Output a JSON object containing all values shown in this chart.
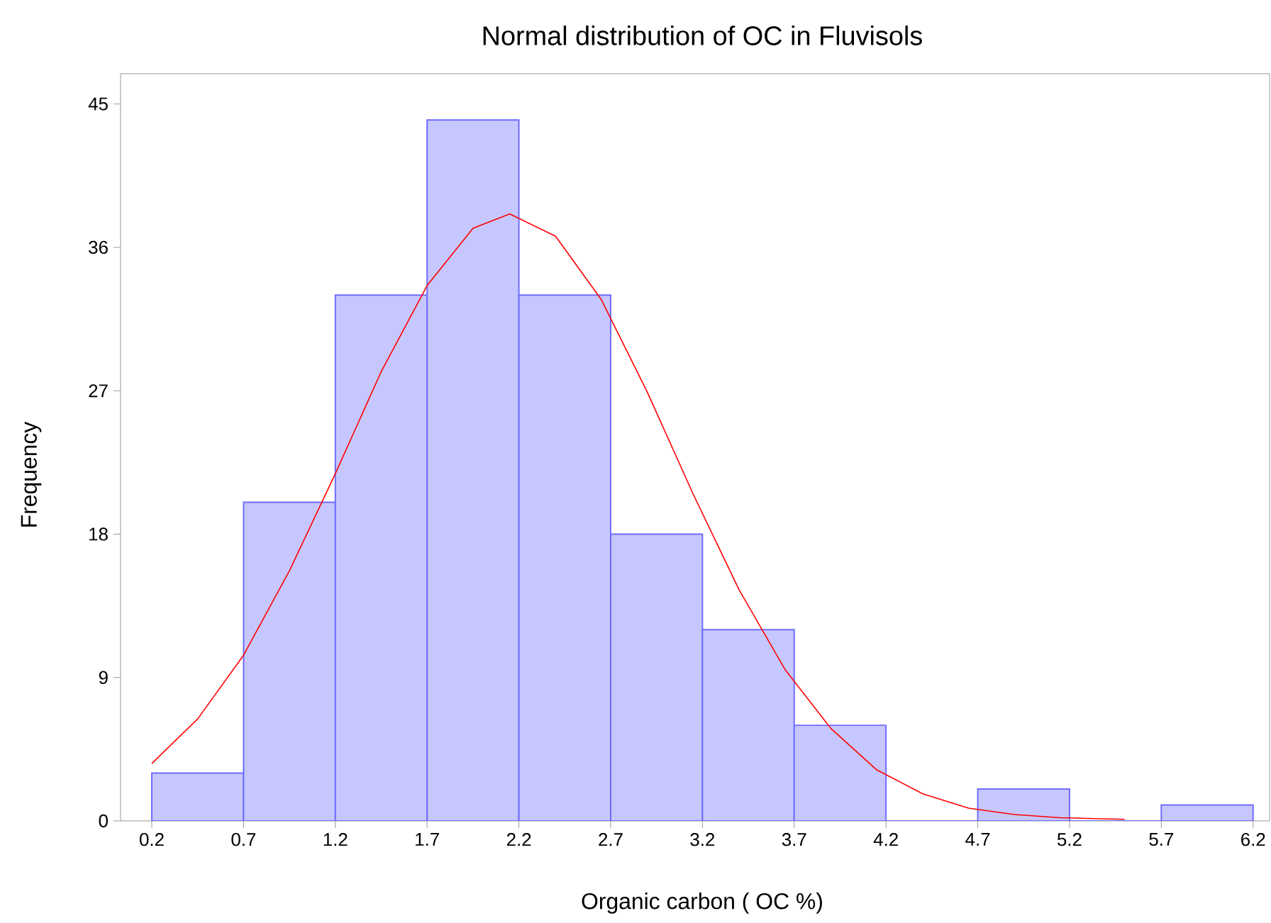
{
  "chart_data": {
    "type": "histogram",
    "title": "Normal distribution of OC in Fluvisols",
    "xlabel": "Organic carbon ( OC %)",
    "ylabel": "Frequency",
    "bins": [
      0.2,
      0.7,
      1.2,
      1.7,
      2.2,
      2.7,
      3.2,
      3.7,
      4.2,
      4.7,
      5.2,
      5.7,
      6.2
    ],
    "values": [
      3,
      20,
      33,
      44,
      33,
      18,
      12,
      6,
      0,
      2,
      0,
      1
    ],
    "color": "#c7c7ff",
    "series": [
      {
        "type": "line",
        "color": "#ff0000",
        "x": [
          0.2,
          0.45,
          0.7,
          0.95,
          1.2,
          1.45,
          1.7,
          1.95,
          2.15,
          2.4,
          2.65,
          2.9,
          3.15,
          3.4,
          3.65,
          3.9,
          4.15,
          4.4,
          4.65,
          4.9,
          5.15,
          5.5
        ],
        "values": [
          3.6,
          6.4,
          10.4,
          15.7,
          21.8,
          28.2,
          33.6,
          37.2,
          38.1,
          36.7,
          32.7,
          26.9,
          20.5,
          14.5,
          9.5,
          5.8,
          3.2,
          1.7,
          0.8,
          0.4,
          0.2,
          0.1
        ]
      }
    ],
    "xlim": [
      0.03,
      6.29
    ],
    "ylim": [
      0,
      46.9
    ],
    "xticks": [
      0.2,
      0.7,
      1.2,
      1.7,
      2.2,
      2.7,
      3.2,
      3.7,
      4.2,
      4.7,
      5.2,
      5.7,
      6.2
    ],
    "yticks": [
      0,
      9,
      18,
      27,
      36,
      45
    ]
  }
}
